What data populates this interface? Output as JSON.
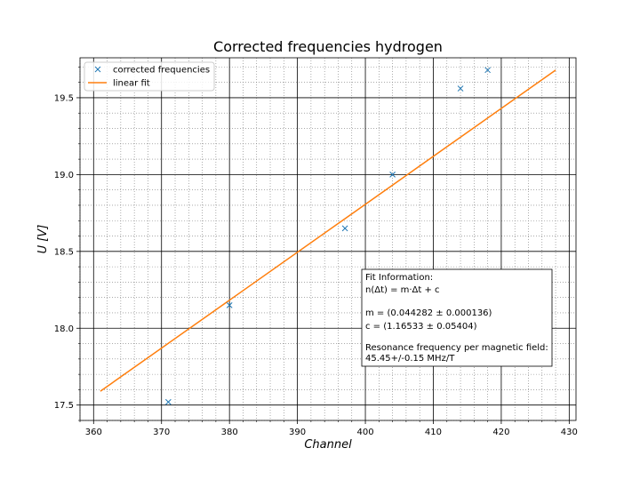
{
  "chart_data": {
    "type": "scatter",
    "title": "Corrected frequencies hydrogen",
    "xlabel": "Channel",
    "ylabel": "U [V]",
    "xlim": [
      358,
      431
    ],
    "ylim": [
      17.4,
      19.76
    ],
    "xticks": [
      360,
      370,
      380,
      390,
      400,
      410,
      420,
      430
    ],
    "yticks": [
      17.5,
      18.0,
      18.5,
      19.0,
      19.5
    ],
    "xtick_labels": [
      "360",
      "370",
      "380",
      "390",
      "400",
      "410",
      "420",
      "430"
    ],
    "ytick_labels": [
      "17.5",
      "18.0",
      "18.5",
      "19.0",
      "19.5"
    ],
    "grid": true,
    "legend_position": "top-left",
    "series": [
      {
        "name": "corrected frequencies",
        "kind": "scatter",
        "marker": "x",
        "color": "#1f77b4",
        "x": [
          371,
          380,
          397,
          404,
          414,
          418
        ],
        "y": [
          17.52,
          18.15,
          18.65,
          19.0,
          19.56,
          19.68
        ]
      },
      {
        "name": "linear fit",
        "kind": "line",
        "color": "#ff7f0e",
        "x": [
          361,
          428
        ],
        "y": [
          17.59,
          19.68
        ]
      }
    ],
    "annotation": {
      "lines": [
        "Fit Information:",
        "n(Δt) = m·Δt + c",
        "",
        "m = (0.044282 ± 0.000136)",
        "c = (1.16533 ± 0.05404)",
        "",
        "Resonance frequency per magnetic field:",
        "45.45+/-0.15 MHz/T"
      ]
    }
  }
}
